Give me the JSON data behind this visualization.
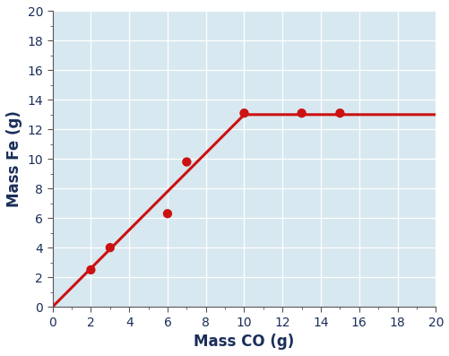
{
  "scatter_x": [
    2,
    3,
    6,
    7,
    10,
    13,
    15
  ],
  "scatter_y": [
    2.5,
    4.0,
    6.3,
    9.8,
    13.1,
    13.1,
    13.1
  ],
  "line_x": [
    0,
    10,
    20
  ],
  "line_y": [
    0,
    13.0,
    13.0
  ],
  "dot_color": "#cc1111",
  "line_color": "#cc1111",
  "plot_bg_color": "#d8e8f0",
  "fig_bg_color": "#ffffff",
  "xlabel": "Mass CO (g)",
  "ylabel": "Mass Fe (g)",
  "label_color": "#1a2e5a",
  "tick_color": "#1a2e5a",
  "xlim": [
    0,
    20
  ],
  "ylim": [
    0,
    20
  ],
  "xticks": [
    0,
    2,
    4,
    6,
    8,
    10,
    12,
    14,
    16,
    18,
    20
  ],
  "yticks": [
    0,
    2,
    4,
    6,
    8,
    10,
    12,
    14,
    16,
    18,
    20
  ],
  "xlabel_fontsize": 12,
  "ylabel_fontsize": 12,
  "tick_fontsize": 10,
  "dot_size": 55,
  "line_width": 2.2
}
